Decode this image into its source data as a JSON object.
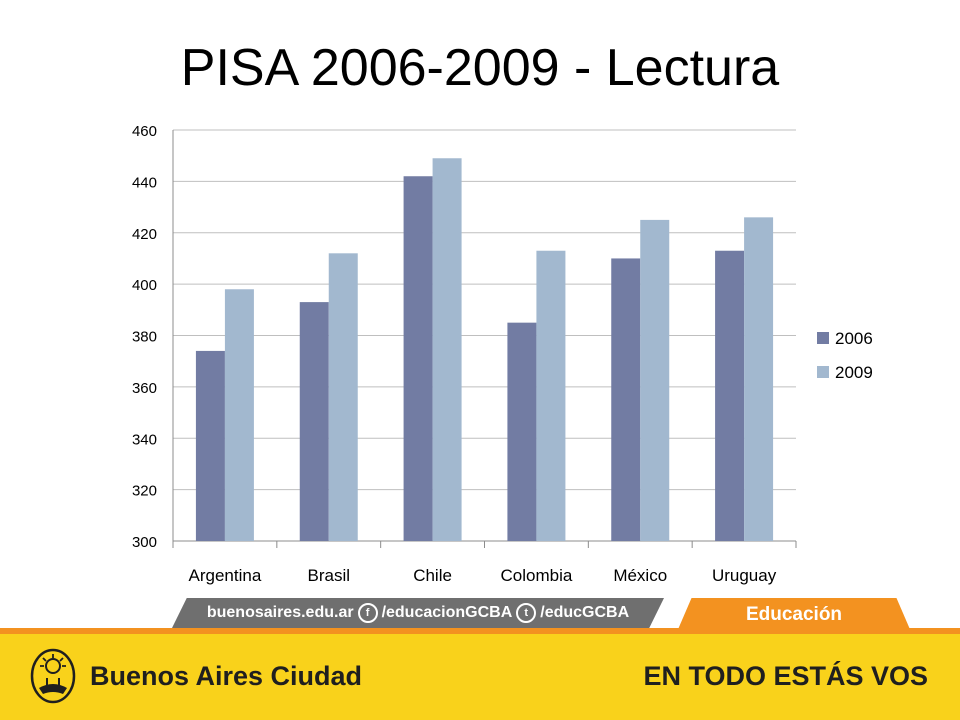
{
  "slide": {
    "title": "PISA 2006-2009 - Lectura"
  },
  "chart_data": {
    "type": "bar",
    "title": "PISA 2006-2009 - Lectura",
    "categories": [
      "Argentina",
      "Brasil",
      "Chile",
      "Colombia",
      "México",
      "Uruguay"
    ],
    "series": [
      {
        "name": "2006",
        "values": [
          374,
          393,
          442,
          385,
          410,
          413
        ],
        "color": "#727ca3"
      },
      {
        "name": "2009",
        "values": [
          398,
          412,
          449,
          413,
          425,
          426
        ],
        "color": "#a2b8cf"
      }
    ],
    "ylim": [
      300,
      460
    ],
    "yticks": [
      300,
      320,
      340,
      360,
      380,
      400,
      420,
      440,
      460
    ],
    "grid": true,
    "legend": "right"
  },
  "footer": {
    "social_site": "buenosaires.edu.ar",
    "facebook_handle": "/educacionGCBA",
    "twitter_handle": "/educGCBA",
    "section_tab": "Educación",
    "brand": "Buenos Aires Ciudad",
    "slogan": "EN TODO ESTÁS VOS"
  },
  "colors": {
    "accent_orange": "#f39220",
    "footer_yellow": "#f9d21b",
    "social_gray": "#6f6f6f"
  },
  "icons": [
    "facebook-icon",
    "twitter-icon",
    "city-seal-icon"
  ]
}
